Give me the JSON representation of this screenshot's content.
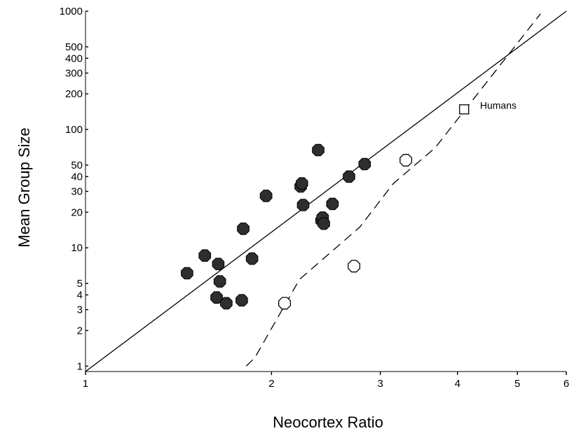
{
  "chart_data": {
    "type": "scatter",
    "xlabel": "Neocortex Ratio",
    "ylabel": "Mean Group Size",
    "x_scale": "log",
    "y_scale": "log",
    "xlim": [
      1,
      6
    ],
    "ylim": [
      0.9,
      1000
    ],
    "x_ticks": [
      1,
      2,
      3,
      4,
      5,
      6
    ],
    "x_tick_labels": [
      "1",
      "2",
      "3",
      "4",
      "5",
      "6"
    ],
    "y_ticks": [
      1,
      2,
      3,
      4,
      5,
      10,
      20,
      30,
      40,
      50,
      100,
      200,
      300,
      400,
      500,
      1000
    ],
    "y_tick_labels": [
      "1",
      "2",
      "3",
      "4",
      "5",
      "10",
      "20",
      "30",
      "40",
      "50",
      "100",
      "200",
      "300",
      "400",
      "500",
      "1000"
    ],
    "grid": false,
    "legend": "none",
    "series": [
      {
        "marker": "filled-octagon",
        "color": "#2e2e2e",
        "points": [
          {
            "x": 1.46,
            "y": 6.1
          },
          {
            "x": 1.56,
            "y": 8.6
          },
          {
            "x": 1.64,
            "y": 7.3
          },
          {
            "x": 1.65,
            "y": 5.2
          },
          {
            "x": 1.63,
            "y": 3.8
          },
          {
            "x": 1.69,
            "y": 3.4
          },
          {
            "x": 1.79,
            "y": 3.6
          },
          {
            "x": 1.8,
            "y": 14.5
          },
          {
            "x": 1.86,
            "y": 8.1
          },
          {
            "x": 1.96,
            "y": 27.5
          },
          {
            "x": 2.23,
            "y": 33
          },
          {
            "x": 2.24,
            "y": 35
          },
          {
            "x": 2.25,
            "y": 23
          },
          {
            "x": 2.38,
            "y": 67
          },
          {
            "x": 2.41,
            "y": 17
          },
          {
            "x": 2.42,
            "y": 18
          },
          {
            "x": 2.43,
            "y": 16
          },
          {
            "x": 2.51,
            "y": 23.5
          },
          {
            "x": 2.67,
            "y": 40
          },
          {
            "x": 2.83,
            "y": 51
          }
        ]
      },
      {
        "marker": "open-octagon",
        "color": "#000000",
        "points": [
          {
            "x": 2.1,
            "y": 3.4
          },
          {
            "x": 2.72,
            "y": 7.0
          },
          {
            "x": 3.3,
            "y": 55
          }
        ]
      },
      {
        "marker": "open-square",
        "color": "#000000",
        "points": [
          {
            "x": 4.1,
            "y": 148
          }
        ]
      }
    ],
    "lines": [
      {
        "style": "solid",
        "points": [
          {
            "x": 1.0,
            "y": 0.9
          },
          {
            "x": 6.0,
            "y": 1000
          }
        ]
      },
      {
        "style": "dashed",
        "points": [
          {
            "x": 1.82,
            "y": 1.0
          },
          {
            "x": 1.88,
            "y": 1.18
          },
          {
            "x": 2.22,
            "y": 5.4
          },
          {
            "x": 2.78,
            "y": 15
          },
          {
            "x": 3.15,
            "y": 35
          },
          {
            "x": 3.68,
            "y": 70
          },
          {
            "x": 5.45,
            "y": 950
          }
        ]
      }
    ],
    "annotations": [
      {
        "text": "Humans",
        "x": 4.35,
        "y": 150
      }
    ]
  }
}
